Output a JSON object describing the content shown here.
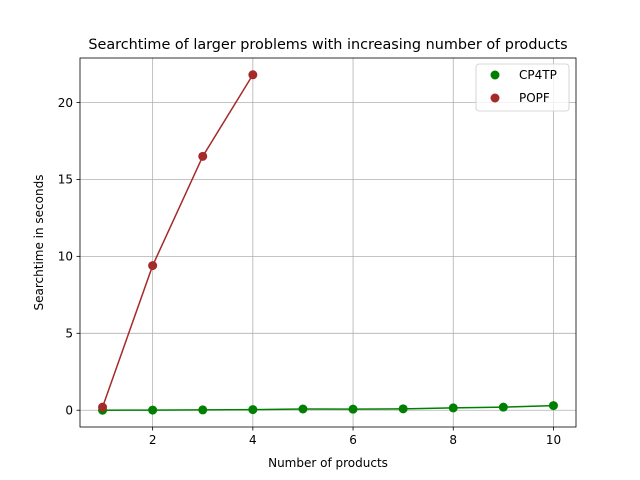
{
  "chart_data": {
    "type": "line",
    "title": "Searchtime of larger problems with increasing number of products",
    "xlabel": "Number of products",
    "ylabel": "Searchtime in seconds",
    "xlim": [
      0.55,
      10.45
    ],
    "ylim": [
      -1.09,
      22.89
    ],
    "xticks": [
      2,
      4,
      6,
      8,
      10
    ],
    "yticks": [
      0,
      5,
      10,
      15,
      20
    ],
    "grid": true,
    "legend_position": "top-right",
    "series": [
      {
        "name": "CP4TP",
        "color": "#008000",
        "marker": "circle",
        "x": [
          1,
          2,
          3,
          4,
          5,
          6,
          7,
          8,
          9,
          10
        ],
        "y": [
          0.0,
          0.01,
          0.02,
          0.04,
          0.08,
          0.07,
          0.09,
          0.15,
          0.2,
          0.3
        ]
      },
      {
        "name": "POPF",
        "color": "#a52a2a",
        "marker": "circle",
        "x": [
          1,
          2,
          3,
          4
        ],
        "y": [
          0.2,
          9.4,
          16.5,
          21.8
        ]
      }
    ]
  }
}
